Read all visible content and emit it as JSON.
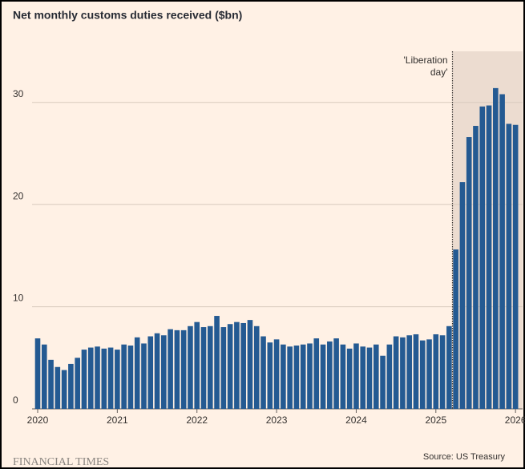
{
  "chart_data": {
    "type": "bar",
    "title": "Net monthly customs duties received ($bn)",
    "source": "Source: US Treasury",
    "publisher": "FINANCIAL TIMES",
    "color": "#245a92",
    "grid": true,
    "ylim": [
      0,
      35
    ],
    "yticks": [
      0,
      10,
      20,
      30
    ],
    "annotation": {
      "lines": [
        "'Liberation",
        "day'"
      ],
      "at": 63
    },
    "categories": [
      "2020",
      null,
      null,
      null,
      null,
      null,
      null,
      null,
      null,
      null,
      null,
      null,
      "2021",
      null,
      null,
      null,
      null,
      null,
      null,
      null,
      null,
      null,
      null,
      null,
      "2022",
      null,
      null,
      null,
      null,
      null,
      null,
      null,
      null,
      null,
      null,
      null,
      "2023",
      null,
      null,
      null,
      null,
      null,
      null,
      null,
      null,
      null,
      null,
      null,
      "2024",
      null,
      null,
      null,
      null,
      null,
      null,
      null,
      null,
      null,
      null,
      null,
      "2025",
      null,
      null,
      null,
      null,
      null,
      null,
      null,
      null,
      null,
      null,
      null,
      "2026"
    ],
    "values": [
      6.9,
      6.3,
      4.8,
      4.1,
      3.8,
      4.4,
      5.0,
      5.8,
      6.0,
      6.1,
      5.9,
      6.0,
      5.8,
      6.3,
      6.2,
      7.0,
      6.4,
      7.1,
      7.4,
      7.2,
      7.8,
      7.7,
      7.7,
      8.1,
      8.5,
      8.0,
      8.1,
      9.1,
      8.0,
      8.3,
      8.5,
      8.4,
      8.7,
      8.1,
      7.1,
      6.5,
      6.8,
      6.3,
      6.1,
      6.2,
      6.3,
      6.4,
      6.9,
      6.3,
      6.6,
      6.9,
      6.3,
      5.9,
      6.4,
      6.1,
      6.0,
      6.3,
      5.2,
      6.3,
      7.1,
      7.0,
      7.2,
      7.3,
      6.7,
      6.8,
      7.3,
      7.2,
      8.1,
      15.6,
      22.2,
      26.6,
      27.7,
      29.6,
      29.7,
      31.4,
      30.8,
      27.9,
      27.8
    ]
  }
}
